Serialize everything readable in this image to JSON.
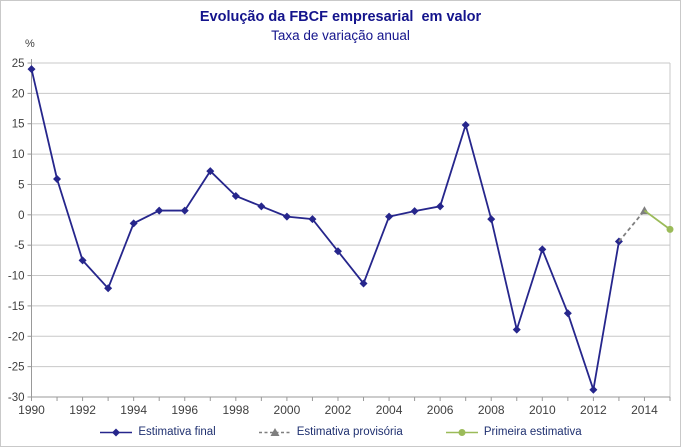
{
  "title": "Evolução da FBCF empresarial  em valor",
  "subtitle": "Taxa de variação anual",
  "colors": {
    "title": "#14148C",
    "estimativa_final": "#26268C",
    "estimativa_provisoria": "#7F7F7F",
    "primeira_estimativa": "#9BBB59",
    "gridline": "#C8C8C8",
    "axis": "#999999",
    "tick_label": "#404040",
    "legend_text": "#1F3070"
  },
  "legend": [
    {
      "label": "Estimativa final",
      "marker": "diamond"
    },
    {
      "label": "Estimativa provisória",
      "marker": "triangle"
    },
    {
      "label": "Primeira estimativa",
      "marker": "circle"
    }
  ],
  "chart_data": {
    "type": "line",
    "title": "Evolução da FBCF empresarial em valor",
    "subtitle": "Taxa de variação anual",
    "xlabel": "",
    "ylabel": "%",
    "ylim": [
      -30,
      25
    ],
    "ytick_step": 5,
    "xlim": [
      1990,
      2015
    ],
    "xtick_labels": [
      1990,
      1992,
      1994,
      1996,
      1998,
      2000,
      2002,
      2004,
      2006,
      2008,
      2010,
      2012,
      2014
    ],
    "grid": "horizontal",
    "legend_position": "bottom",
    "series": [
      {
        "name": "Estimativa final",
        "style": "solid",
        "marker": "diamond",
        "color": "#26268C",
        "x": [
          1990,
          1991,
          1992,
          1993,
          1994,
          1995,
          1996,
          1997,
          1998,
          1999,
          2000,
          2001,
          2002,
          2003,
          2004,
          2005,
          2006,
          2007,
          2008,
          2009,
          2010,
          2011,
          2012,
          2013
        ],
        "values": [
          24.0,
          5.9,
          -7.5,
          -12.1,
          -1.4,
          0.7,
          0.7,
          7.2,
          3.1,
          1.4,
          -0.3,
          -0.7,
          -6.0,
          -11.3,
          -0.3,
          0.6,
          1.4,
          14.8,
          -0.7,
          -18.9,
          -5.7,
          -16.2,
          -28.8,
          -4.4
        ]
      },
      {
        "name": "Estimativa provisória",
        "style": "dashed",
        "marker": "triangle",
        "color": "#7F7F7F",
        "x": [
          2013,
          2014
        ],
        "values": [
          -4.4,
          0.7
        ],
        "marker_on": [
          2014
        ]
      },
      {
        "name": "Primeira estimativa",
        "style": "solid",
        "marker": "circle",
        "color": "#9BBB59",
        "x": [
          2014,
          2015
        ],
        "values": [
          0.7,
          -2.4
        ],
        "marker_on": [
          2015
        ]
      }
    ]
  }
}
